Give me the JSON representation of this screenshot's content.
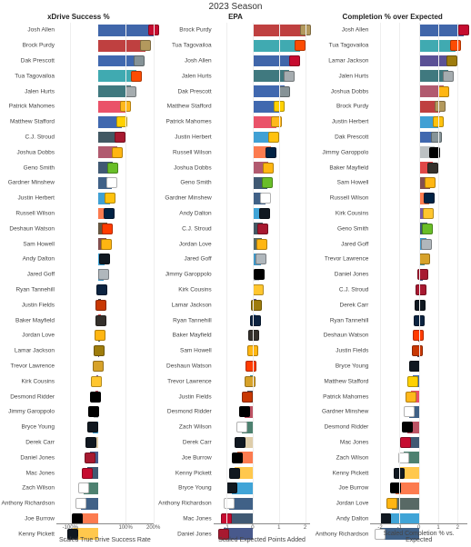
{
  "season_title": "2023 Season",
  "background_color": "#ffffff",
  "row_height": 16.8,
  "panels": [
    {
      "title": "xDrive Success %",
      "axis_label": "Scaled True Drive Success Rate",
      "domain": [
        -150,
        200
      ],
      "ticks": [
        {
          "v": -100,
          "label": "-100%"
        },
        {
          "v": 100,
          "label": "100%"
        },
        {
          "v": 200,
          "label": "200%"
        }
      ],
      "rows": [
        {
          "name": "Josh Allen",
          "value": 200,
          "color": "#00338d",
          "logo": "#c60c30"
        },
        {
          "name": "Brock Purdy",
          "value": 170,
          "color": "#aa0000",
          "logo": "#b3995d"
        },
        {
          "name": "Dak Prescott",
          "value": 150,
          "color": "#003594",
          "logo": "#869397"
        },
        {
          "name": "Tua Tagovailoa",
          "value": 140,
          "color": "#008e97",
          "logo": "#fc4c02"
        },
        {
          "name": "Jalen Hurts",
          "value": 120,
          "color": "#004c54",
          "logo": "#a5acaf"
        },
        {
          "name": "Patrick Mahomes",
          "value": 100,
          "color": "#e31837",
          "logo": "#ffb81c"
        },
        {
          "name": "Matthew Stafford",
          "value": 85,
          "color": "#003594",
          "logo": "#ffd100"
        },
        {
          "name": "C.J. Stroud",
          "value": 80,
          "color": "#03202f",
          "logo": "#a71930"
        },
        {
          "name": "Joshua Dobbs",
          "value": 70,
          "color": "#97233f",
          "logo": "#ffb612"
        },
        {
          "name": "Geno Smith",
          "value": 55,
          "color": "#002244",
          "logo": "#69be28"
        },
        {
          "name": "Gardner Minshew",
          "value": 50,
          "color": "#002c5f",
          "logo": "#ffffff"
        },
        {
          "name": "Justin Herbert",
          "value": 45,
          "color": "#0080c6",
          "logo": "#ffc20e"
        },
        {
          "name": "Russell Wilson",
          "value": 40,
          "color": "#fb4f14",
          "logo": "#002244"
        },
        {
          "name": "Deshaun Watson",
          "value": 35,
          "color": "#311d00",
          "logo": "#ff3c00"
        },
        {
          "name": "Sam Howell",
          "value": 30,
          "color": "#5a1414",
          "logo": "#ffb612"
        },
        {
          "name": "Andy Dalton",
          "value": 25,
          "color": "#0085ca",
          "logo": "#101820"
        },
        {
          "name": "Jared Goff",
          "value": 20,
          "color": "#0076b6",
          "logo": "#b0b7bc"
        },
        {
          "name": "Ryan Tannehill",
          "value": 15,
          "color": "#4b92db",
          "logo": "#0c2340"
        },
        {
          "name": "Justin Fields",
          "value": 12,
          "color": "#0b162a",
          "logo": "#c83803"
        },
        {
          "name": "Baker Mayfield",
          "value": 10,
          "color": "#d50a0a",
          "logo": "#34302b"
        },
        {
          "name": "Jordan Love",
          "value": 8,
          "color": "#203731",
          "logo": "#ffb612"
        },
        {
          "name": "Lamar Jackson",
          "value": 5,
          "color": "#241773",
          "logo": "#9e7c0c"
        },
        {
          "name": "Trevor Lawrence",
          "value": 2,
          "color": "#006778",
          "logo": "#d7a22a"
        },
        {
          "name": "Kirk Cousins",
          "value": -5,
          "color": "#4f2683",
          "logo": "#ffc62f"
        },
        {
          "name": "Desmond Ridder",
          "value": -10,
          "color": "#a71930",
          "logo": "#000000"
        },
        {
          "name": "Jimmy Garoppolo",
          "value": -15,
          "color": "#a5acaf",
          "logo": "#000000"
        },
        {
          "name": "Bryce Young",
          "value": -20,
          "color": "#0085ca",
          "logo": "#101820"
        },
        {
          "name": "Derek Carr",
          "value": -25,
          "color": "#d3bc8d",
          "logo": "#101820"
        },
        {
          "name": "Daniel Jones",
          "value": -30,
          "color": "#0b2265",
          "logo": "#a71930"
        },
        {
          "name": "Mac Jones",
          "value": -40,
          "color": "#002244",
          "logo": "#c60c30"
        },
        {
          "name": "Zach Wilson",
          "value": -50,
          "color": "#125740",
          "logo": "#ffffff"
        },
        {
          "name": "Anthony Richardson",
          "value": -60,
          "color": "#002c5f",
          "logo": "#ffffff"
        },
        {
          "name": "Joe Burrow",
          "value": -75,
          "color": "#fb4f14",
          "logo": "#000000"
        },
        {
          "name": "Kenny Pickett",
          "value": -90,
          "color": "#ffb612",
          "logo": "#101820"
        }
      ]
    },
    {
      "title": "EPA",
      "axis_label": "Scaled Expected Points Added",
      "domain": [
        -1.5,
        2.2
      ],
      "ticks": [
        {
          "v": -1,
          "label": "-1"
        },
        {
          "v": 0,
          "label": "0"
        },
        {
          "v": 1,
          "label": "1"
        },
        {
          "v": 2,
          "label": "2"
        }
      ],
      "rows": [
        {
          "name": "Brock Purdy",
          "value": 2.0,
          "color": "#aa0000",
          "logo": "#b3995d"
        },
        {
          "name": "Tua Tagovailoa",
          "value": 1.8,
          "color": "#008e97",
          "logo": "#fc4c02"
        },
        {
          "name": "Josh Allen",
          "value": 1.6,
          "color": "#00338d",
          "logo": "#c60c30"
        },
        {
          "name": "Jalen Hurts",
          "value": 1.4,
          "color": "#004c54",
          "logo": "#a5acaf"
        },
        {
          "name": "Dak Prescott",
          "value": 1.2,
          "color": "#003594",
          "logo": "#869397"
        },
        {
          "name": "Matthew Stafford",
          "value": 1.0,
          "color": "#003594",
          "logo": "#ffd100"
        },
        {
          "name": "Patrick Mahomes",
          "value": 0.9,
          "color": "#e31837",
          "logo": "#ffb81c"
        },
        {
          "name": "Justin Herbert",
          "value": 0.8,
          "color": "#0080c6",
          "logo": "#ffc20e"
        },
        {
          "name": "Russell Wilson",
          "value": 0.7,
          "color": "#fb4f14",
          "logo": "#002244"
        },
        {
          "name": "Joshua Dobbs",
          "value": 0.6,
          "color": "#97233f",
          "logo": "#ffb612"
        },
        {
          "name": "Geno Smith",
          "value": 0.55,
          "color": "#002244",
          "logo": "#69be28"
        },
        {
          "name": "Gardner Minshew",
          "value": 0.5,
          "color": "#002c5f",
          "logo": "#ffffff"
        },
        {
          "name": "Andy Dalton",
          "value": 0.45,
          "color": "#0085ca",
          "logo": "#101820"
        },
        {
          "name": "C.J. Stroud",
          "value": 0.4,
          "color": "#03202f",
          "logo": "#a71930"
        },
        {
          "name": "Jordan Love",
          "value": 0.35,
          "color": "#203731",
          "logo": "#ffb612"
        },
        {
          "name": "Jared Goff",
          "value": 0.3,
          "color": "#0076b6",
          "logo": "#b0b7bc"
        },
        {
          "name": "Jimmy Garoppolo",
          "value": 0.25,
          "color": "#a5acaf",
          "logo": "#000000"
        },
        {
          "name": "Kirk Cousins",
          "value": 0.2,
          "color": "#4f2683",
          "logo": "#ffc62f"
        },
        {
          "name": "Lamar Jackson",
          "value": 0.15,
          "color": "#241773",
          "logo": "#9e7c0c"
        },
        {
          "name": "Ryan Tannehill",
          "value": 0.1,
          "color": "#4b92db",
          "logo": "#0c2340"
        },
        {
          "name": "Baker Mayfield",
          "value": 0.05,
          "color": "#d50a0a",
          "logo": "#34302b"
        },
        {
          "name": "Sam Howell",
          "value": 0.0,
          "color": "#5a1414",
          "logo": "#ffb612"
        },
        {
          "name": "Deshaun Watson",
          "value": -0.05,
          "color": "#311d00",
          "logo": "#ff3c00"
        },
        {
          "name": "Trevor Lawrence",
          "value": -0.1,
          "color": "#006778",
          "logo": "#d7a22a"
        },
        {
          "name": "Justin Fields",
          "value": -0.2,
          "color": "#0b162a",
          "logo": "#c83803"
        },
        {
          "name": "Desmond Ridder",
          "value": -0.3,
          "color": "#a71930",
          "logo": "#000000"
        },
        {
          "name": "Zach Wilson",
          "value": -0.4,
          "color": "#125740",
          "logo": "#ffffff"
        },
        {
          "name": "Derek Carr",
          "value": -0.5,
          "color": "#d3bc8d",
          "logo": "#101820"
        },
        {
          "name": "Joe Burrow",
          "value": -0.6,
          "color": "#fb4f14",
          "logo": "#000000"
        },
        {
          "name": "Kenny Pickett",
          "value": -0.7,
          "color": "#ffb612",
          "logo": "#101820"
        },
        {
          "name": "Bryce Young",
          "value": -0.8,
          "color": "#0085ca",
          "logo": "#101820"
        },
        {
          "name": "Anthony Richardson",
          "value": -0.9,
          "color": "#002c5f",
          "logo": "#ffffff"
        },
        {
          "name": "Mac Jones",
          "value": -1.0,
          "color": "#002244",
          "logo": "#c60c30"
        },
        {
          "name": "Daniel Jones",
          "value": -1.1,
          "color": "#0b2265",
          "logo": "#a71930"
        }
      ]
    },
    {
      "title": "Completion % over Expected",
      "axis_label": "Scaled Completion % vs. Expected",
      "domain": [
        -2.5,
        2.5
      ],
      "ticks": [
        {
          "v": -2,
          "label": "-2"
        },
        {
          "v": -1,
          "label": "-1"
        },
        {
          "v": 0,
          "label": "0"
        },
        {
          "v": 1,
          "label": "1"
        },
        {
          "v": 2,
          "label": "2"
        }
      ],
      "rows": [
        {
          "name": "Josh Allen",
          "value": 2.3,
          "color": "#00338d",
          "logo": "#c60c30"
        },
        {
          "name": "Tua Tagovailoa",
          "value": 1.9,
          "color": "#008e97",
          "logo": "#fc4c02"
        },
        {
          "name": "Lamar Jackson",
          "value": 1.7,
          "color": "#241773",
          "logo": "#9e7c0c"
        },
        {
          "name": "Jalen Hurts",
          "value": 1.5,
          "color": "#004c54",
          "logo": "#a5acaf"
        },
        {
          "name": "Joshua Dobbs",
          "value": 1.3,
          "color": "#97233f",
          "logo": "#ffb612"
        },
        {
          "name": "Brock Purdy",
          "value": 1.1,
          "color": "#aa0000",
          "logo": "#b3995d"
        },
        {
          "name": "Justin Herbert",
          "value": 1.0,
          "color": "#0080c6",
          "logo": "#ffc20e"
        },
        {
          "name": "Dak Prescott",
          "value": 0.9,
          "color": "#003594",
          "logo": "#869397"
        },
        {
          "name": "Jimmy Garoppolo",
          "value": 0.8,
          "color": "#a5acaf",
          "logo": "#000000"
        },
        {
          "name": "Baker Mayfield",
          "value": 0.7,
          "color": "#d50a0a",
          "logo": "#34302b"
        },
        {
          "name": "Sam Howell",
          "value": 0.6,
          "color": "#5a1414",
          "logo": "#ffb612"
        },
        {
          "name": "Russell Wilson",
          "value": 0.55,
          "color": "#fb4f14",
          "logo": "#002244"
        },
        {
          "name": "Kirk Cousins",
          "value": 0.5,
          "color": "#4f2683",
          "logo": "#ffc62f"
        },
        {
          "name": "Geno Smith",
          "value": 0.45,
          "color": "#002244",
          "logo": "#69be28"
        },
        {
          "name": "Jared Goff",
          "value": 0.4,
          "color": "#0076b6",
          "logo": "#b0b7bc"
        },
        {
          "name": "Trevor Lawrence",
          "value": 0.3,
          "color": "#006778",
          "logo": "#d7a22a"
        },
        {
          "name": "Daniel Jones",
          "value": 0.2,
          "color": "#0b2265",
          "logo": "#a71930"
        },
        {
          "name": "C.J. Stroud",
          "value": 0.1,
          "color": "#03202f",
          "logo": "#a71930"
        },
        {
          "name": "Derek Carr",
          "value": 0.05,
          "color": "#d3bc8d",
          "logo": "#101820"
        },
        {
          "name": "Ryan Tannehill",
          "value": 0.0,
          "color": "#4b92db",
          "logo": "#0c2340"
        },
        {
          "name": "Deshaun Watson",
          "value": -0.05,
          "color": "#311d00",
          "logo": "#ff3c00"
        },
        {
          "name": "Justin Fields",
          "value": -0.1,
          "color": "#0b162a",
          "logo": "#c83803"
        },
        {
          "name": "Bryce Young",
          "value": -0.2,
          "color": "#0085ca",
          "logo": "#101820"
        },
        {
          "name": "Matthew Stafford",
          "value": -0.3,
          "color": "#003594",
          "logo": "#ffd100"
        },
        {
          "name": "Patrick Mahomes",
          "value": -0.4,
          "color": "#e31837",
          "logo": "#ffb81c"
        },
        {
          "name": "Gardner Minshew",
          "value": -0.5,
          "color": "#002c5f",
          "logo": "#ffffff"
        },
        {
          "name": "Desmond Ridder",
          "value": -0.6,
          "color": "#a71930",
          "logo": "#000000"
        },
        {
          "name": "Mac Jones",
          "value": -0.7,
          "color": "#002244",
          "logo": "#c60c30"
        },
        {
          "name": "Zach Wilson",
          "value": -0.8,
          "color": "#125740",
          "logo": "#ffffff"
        },
        {
          "name": "Kenny Pickett",
          "value": -1.0,
          "color": "#ffb612",
          "logo": "#101820"
        },
        {
          "name": "Joe Burrow",
          "value": -1.2,
          "color": "#fb4f14",
          "logo": "#000000"
        },
        {
          "name": "Jordan Love",
          "value": -1.4,
          "color": "#203731",
          "logo": "#ffb612"
        },
        {
          "name": "Andy Dalton",
          "value": -1.7,
          "color": "#0085ca",
          "logo": "#101820"
        },
        {
          "name": "Anthony Richardson",
          "value": -2.0,
          "color": "#002c5f",
          "logo": "#ffffff"
        }
      ]
    }
  ]
}
